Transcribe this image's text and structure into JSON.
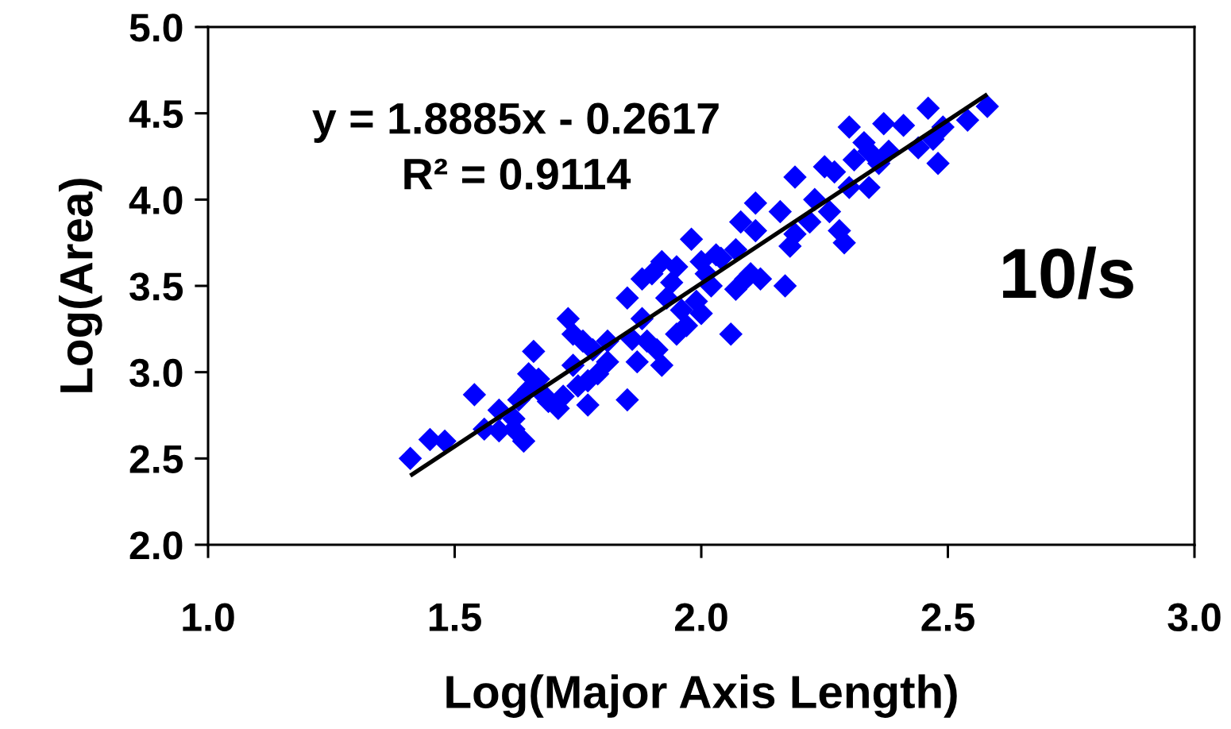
{
  "chart_data": {
    "type": "scatter",
    "xlabel": "Log(Major Axis Length)",
    "ylabel": "Log(Area)",
    "annotations": [
      "y = 1.8885x - 0.2617",
      "R² = 0.9114",
      "10/s"
    ],
    "xlim": [
      1.0,
      3.0
    ],
    "ylim": [
      2.0,
      5.0
    ],
    "xticks": [
      {
        "value": 1.0,
        "label": "1.0"
      },
      {
        "value": 1.5,
        "label": "1.5"
      },
      {
        "value": 2.0,
        "label": "2.0"
      },
      {
        "value": 2.5,
        "label": "2.5"
      },
      {
        "value": 3.0,
        "label": "3.0"
      }
    ],
    "yticks": [
      {
        "value": 2.0,
        "label": "2.0"
      },
      {
        "value": 2.5,
        "label": "2.5"
      },
      {
        "value": 3.0,
        "label": "3.0"
      },
      {
        "value": 3.5,
        "label": "3.5"
      },
      {
        "value": 4.0,
        "label": "4.0"
      },
      {
        "value": 4.5,
        "label": "4.5"
      },
      {
        "value": 5.0,
        "label": "5.0"
      }
    ],
    "marker": "diamond",
    "series": [
      {
        "color": "#0000ff",
        "x": [
          1.41,
          1.45,
          1.48,
          1.54,
          1.56,
          1.59,
          1.59,
          1.62,
          1.62,
          1.63,
          1.64,
          1.65,
          1.65,
          1.66,
          1.67,
          1.68,
          1.69,
          1.71,
          1.72,
          1.73,
          1.74,
          1.74,
          1.75,
          1.76,
          1.77,
          1.77,
          1.78,
          1.79,
          1.81,
          1.81,
          1.85,
          1.85,
          1.86,
          1.87,
          1.88,
          1.88,
          1.89,
          1.9,
          1.91,
          1.92,
          1.92,
          1.93,
          1.94,
          1.95,
          1.95,
          1.96,
          1.97,
          1.98,
          1.99,
          2.0,
          2.0,
          2.01,
          2.02,
          2.03,
          2.04,
          2.06,
          2.07,
          2.07,
          2.08,
          2.09,
          2.1,
          2.11,
          2.11,
          2.12,
          2.16,
          2.17,
          2.18,
          2.19,
          2.19,
          2.22,
          2.23,
          2.25,
          2.26,
          2.27,
          2.28,
          2.29,
          2.3,
          2.3,
          2.31,
          2.33,
          2.34,
          2.34,
          2.36,
          2.37,
          2.38,
          2.41,
          2.44,
          2.46,
          2.47,
          2.48,
          2.49,
          2.54,
          2.58
        ],
        "values": [
          2.5,
          2.61,
          2.6,
          2.87,
          2.67,
          2.78,
          2.66,
          2.73,
          2.67,
          2.84,
          2.6,
          2.9,
          2.99,
          3.12,
          2.96,
          2.87,
          2.83,
          2.79,
          2.86,
          3.31,
          3.22,
          3.04,
          2.92,
          3.18,
          2.81,
          2.95,
          3.13,
          2.99,
          3.06,
          3.18,
          2.84,
          3.43,
          3.19,
          3.06,
          3.31,
          3.54,
          3.18,
          3.57,
          3.13,
          3.04,
          3.64,
          3.43,
          3.52,
          3.22,
          3.61,
          3.36,
          3.27,
          3.77,
          3.41,
          3.64,
          3.34,
          3.57,
          3.5,
          3.68,
          3.66,
          3.22,
          3.71,
          3.48,
          3.87,
          3.54,
          3.57,
          3.98,
          3.82,
          3.54,
          3.93,
          3.5,
          3.73,
          3.8,
          4.13,
          3.87,
          4.0,
          4.19,
          3.93,
          4.16,
          3.82,
          3.75,
          4.07,
          4.42,
          4.23,
          4.33,
          4.07,
          4.28,
          4.21,
          4.44,
          4.28,
          4.43,
          4.3,
          4.53,
          4.35,
          4.21,
          4.42,
          4.46,
          4.54
        ]
      },
      {
        "type": "line",
        "color": "#000000",
        "marker": "none",
        "x": [
          1.41,
          2.58
        ],
        "values": [
          2.4,
          4.61
        ]
      }
    ]
  }
}
